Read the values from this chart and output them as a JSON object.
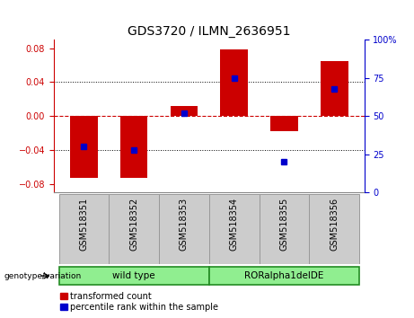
{
  "title": "GDS3720 / ILMN_2636951",
  "categories": [
    "GSM518351",
    "GSM518352",
    "GSM518353",
    "GSM518354",
    "GSM518355",
    "GSM518356"
  ],
  "bar_values": [
    -0.073,
    -0.073,
    0.012,
    0.079,
    -0.018,
    0.065
  ],
  "percentile_values": [
    30,
    28,
    52,
    75,
    20,
    68
  ],
  "ylim_left": [
    -0.09,
    0.09
  ],
  "ylim_right": [
    0,
    100
  ],
  "yticks_left": [
    -0.08,
    -0.04,
    0,
    0.04,
    0.08
  ],
  "yticks_right": [
    0,
    25,
    50,
    75,
    100
  ],
  "bar_color": "#cc0000",
  "marker_color": "#0000cc",
  "zero_line_color": "#cc0000",
  "grid_color": "#000000",
  "plot_bg_color": "#ffffff",
  "group1_label": "wild type",
  "group2_label": "RORalpha1delDE",
  "group1_indices": [
    0,
    1,
    2
  ],
  "group2_indices": [
    3,
    4,
    5
  ],
  "group_bg_color": "#90ee90",
  "group_border_color": "#228B22",
  "xtick_bg_color": "#cccccc",
  "xtick_border_color": "#999999",
  "group_header_label": "genotype/variation",
  "legend_red_label": "transformed count",
  "legend_blue_label": "percentile rank within the sample",
  "bar_width": 0.55,
  "title_fontsize": 10,
  "tick_fontsize": 7,
  "label_fontsize": 7.5
}
